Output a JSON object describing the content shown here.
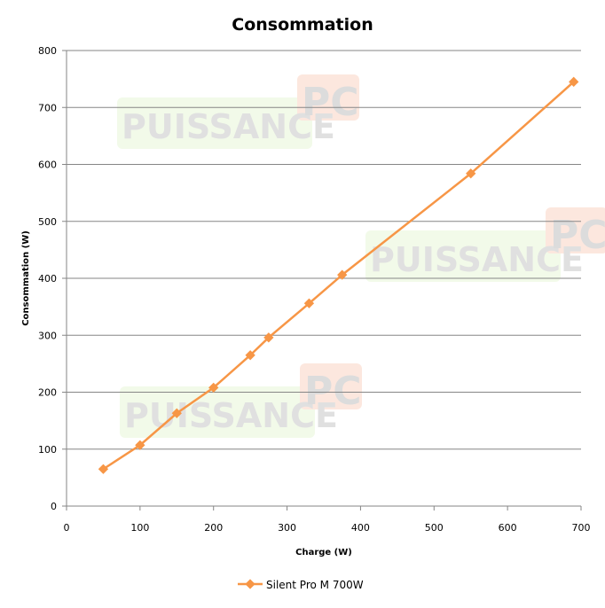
{
  "chart_data": {
    "type": "line",
    "title": "Consommation",
    "xlabel": "Charge (W)",
    "ylabel": "Consommation (W)",
    "xlim": [
      0,
      700
    ],
    "ylim": [
      0,
      800
    ],
    "xticks": [
      0,
      100,
      200,
      300,
      400,
      500,
      600,
      700
    ],
    "yticks": [
      0,
      100,
      200,
      300,
      400,
      500,
      600,
      700,
      800
    ],
    "grid": "horizontal",
    "legend_position": "bottom",
    "series": [
      {
        "name": "Silent Pro M 700W",
        "color": "#F79646",
        "marker": "diamond",
        "x": [
          50,
          100,
          150,
          200,
          250,
          275,
          330,
          375,
          550,
          690
        ],
        "y": [
          65,
          107,
          163,
          208,
          265,
          296,
          356,
          406,
          584,
          745
        ]
      }
    ]
  },
  "watermark": {
    "text_left": "PUISSANCE",
    "text_right": "PC"
  }
}
